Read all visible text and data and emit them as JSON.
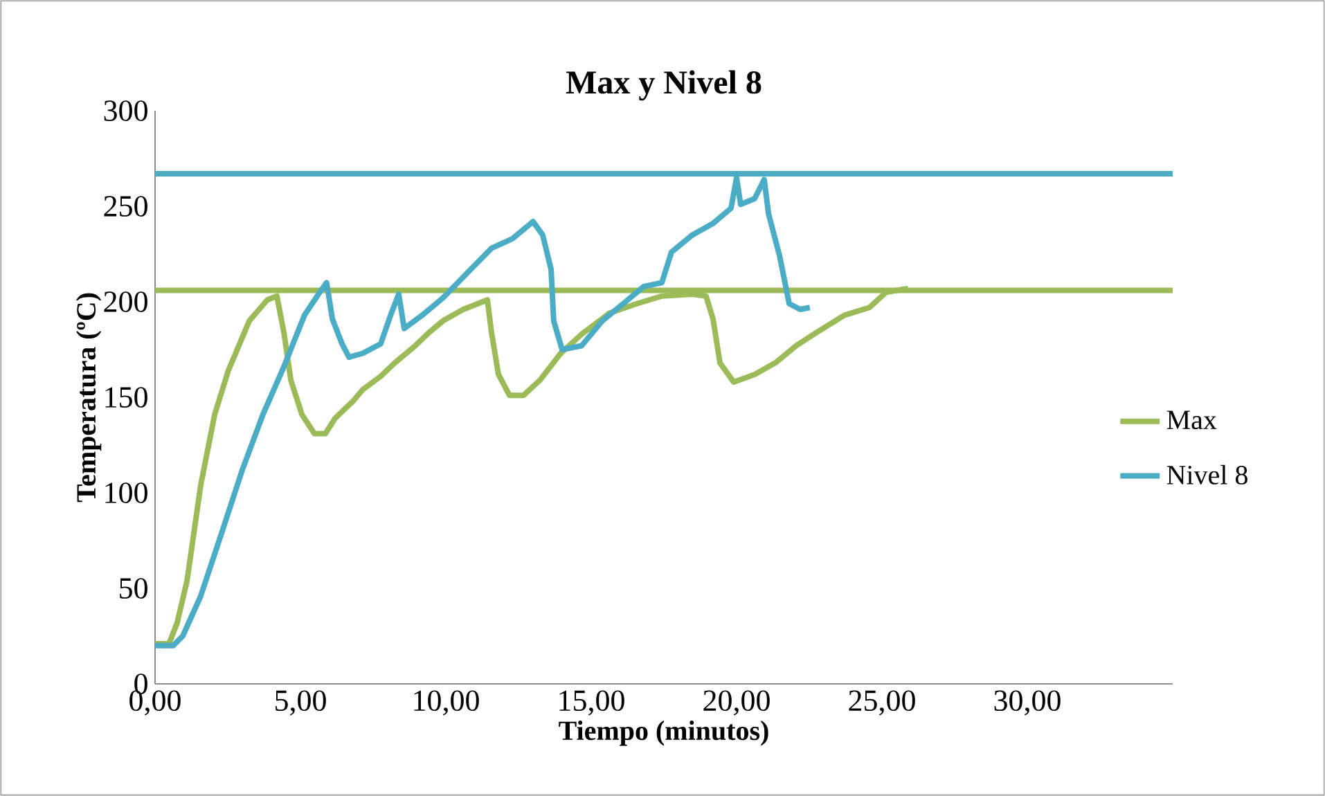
{
  "chart_data": {
    "type": "line",
    "title": "Max y Nivel 8",
    "xlabel": "Tiempo (minutos)",
    "ylabel": "Temperatura (ºC)",
    "xlim": [
      0,
      35
    ],
    "ylim": [
      0,
      300
    ],
    "xticks": [
      {
        "value": 0,
        "label": "0,00"
      },
      {
        "value": 5,
        "label": "5,00"
      },
      {
        "value": 10,
        "label": "10,00"
      },
      {
        "value": 15,
        "label": "15,00"
      },
      {
        "value": 20,
        "label": "20,00"
      },
      {
        "value": 25,
        "label": "25,00"
      },
      {
        "value": 30,
        "label": "30,00"
      }
    ],
    "yticks": [
      0,
      50,
      100,
      150,
      200,
      250,
      300
    ],
    "grid": false,
    "legend": "right",
    "marker": "none",
    "line_style": "solid",
    "ref_lines": [
      {
        "axis": "y",
        "value": 267,
        "color": "#4bacc6"
      },
      {
        "axis": "y",
        "value": 206,
        "color": "#9bbb59"
      }
    ],
    "series": [
      {
        "name": "Max",
        "color": "#9bbb59",
        "x": [
          0,
          0.48,
          0.76,
          1.1,
          1.57,
          2.05,
          2.52,
          3.24,
          3.86,
          4.19,
          4.43,
          4.67,
          5.05,
          5.48,
          5.86,
          6.19,
          6.81,
          7.14,
          7.76,
          8.24,
          8.95,
          9.43,
          9.9,
          10.6,
          11.43,
          11.57,
          11.81,
          12.19,
          12.67,
          13.24,
          13.95,
          14.67,
          15.62,
          16.57,
          17.43,
          18.48,
          18.95,
          19.19,
          19.43,
          19.9,
          20.62,
          21.33,
          22.05,
          22.76,
          23.71,
          24.57,
          25.14,
          25.9
        ],
        "values": [
          21,
          21,
          32,
          54,
          104,
          141,
          164,
          190,
          201,
          203,
          184,
          159,
          141,
          131,
          131,
          139,
          148,
          154,
          161,
          168,
          177,
          184,
          190,
          196,
          201,
          184,
          162,
          151,
          151,
          159,
          173,
          183,
          194,
          199,
          203,
          204,
          203,
          191,
          168,
          158,
          162,
          168,
          177,
          184,
          193,
          197,
          205,
          207
        ]
      },
      {
        "name": "Nivel 8",
        "color": "#4bacc6",
        "x": [
          0,
          0.62,
          0.95,
          1.57,
          2.29,
          3.0,
          3.71,
          4.43,
          5.14,
          5.62,
          5.9,
          6.1,
          6.43,
          6.67,
          7.14,
          7.76,
          8.1,
          8.38,
          8.57,
          9.19,
          9.9,
          10.86,
          11.57,
          12.29,
          13.0,
          13.33,
          13.62,
          13.71,
          14.0,
          14.67,
          15.38,
          16.1,
          16.81,
          17.43,
          17.76,
          18.48,
          19.19,
          19.81,
          20.0,
          20.14,
          20.62,
          20.95,
          21.1,
          21.48,
          21.81,
          22.19,
          22.52
        ],
        "values": [
          20,
          20,
          25,
          46,
          79,
          112,
          141,
          166,
          193,
          204,
          210,
          191,
          178,
          171,
          173,
          178,
          193,
          204,
          186,
          193,
          202,
          217,
          228,
          233,
          242,
          235,
          217,
          190,
          175,
          177,
          190,
          199,
          208,
          210,
          226,
          235,
          241,
          249,
          265,
          251,
          254,
          264,
          246,
          224,
          199,
          196,
          197
        ]
      }
    ]
  }
}
